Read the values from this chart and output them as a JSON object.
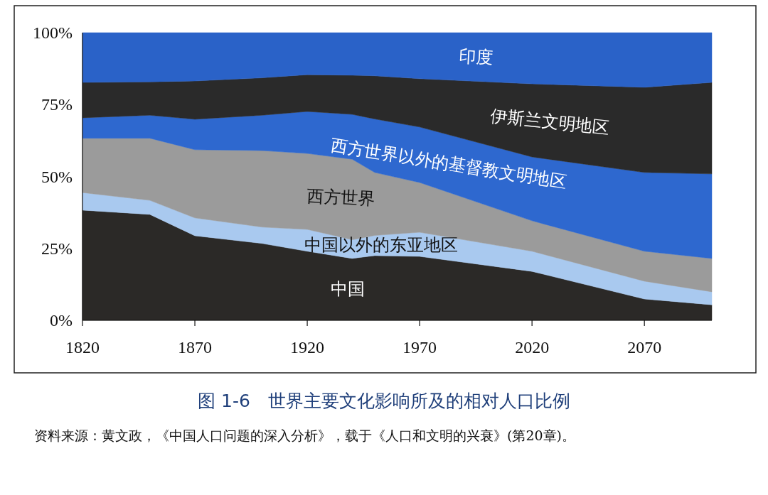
{
  "chart_data": {
    "type": "area",
    "stacked": true,
    "title": "图 1-6　世界主要文化影响所及的相对人口比例",
    "annotations": [
      "资料来源：黄文政，《中国人口问题的深入分析》，载于《人口和文明的兴衰》(第20章)。"
    ],
    "x": [
      1820,
      1850,
      1870,
      1900,
      1920,
      1940,
      1950,
      1970,
      2020,
      2070,
      2100
    ],
    "series": [
      {
        "name": "中国",
        "color": "#2b2927",
        "values": [
          38.3,
          36.8,
          29.4,
          26.7,
          24,
          21.5,
          22.5,
          22.2,
          17,
          7.4,
          5.4
        ]
      },
      {
        "name": "中国以外的东亚地区",
        "color": "#a9c9ef",
        "values": [
          6.1,
          4.9,
          6.2,
          5.7,
          7.6,
          6.5,
          7,
          8.4,
          7,
          6.2,
          4.5
        ]
      },
      {
        "name": "西方世界",
        "color": "#9b9b9b",
        "values": [
          18.9,
          21.6,
          23.7,
          26.6,
          26.4,
          28,
          21.9,
          17.3,
          10.6,
          10.4,
          11.6
        ]
      },
      {
        "name": "西方世界以外的基督教文明地区",
        "color": "#2e68cf",
        "values": [
          7.1,
          8,
          10.6,
          12.3,
          14.6,
          15.6,
          18.6,
          19.3,
          22.2,
          27.4,
          29.4
        ]
      },
      {
        "name": "伊斯兰文明地区",
        "color": "#2a2a2a",
        "values": [
          12.3,
          11.6,
          13.3,
          13,
          12.8,
          13.6,
          15,
          16.8,
          25.4,
          29.6,
          31.8
        ]
      },
      {
        "name": "印度",
        "color": "#2a62c8",
        "values": [
          17.3,
          17.1,
          16.8,
          15.7,
          14.6,
          14.8,
          15,
          16,
          17.8,
          19,
          17.3
        ]
      }
    ],
    "xlim": [
      1820,
      2100
    ],
    "xticks": [
      1820,
      1870,
      1920,
      1970,
      2020,
      2070
    ],
    "ylim": [
      0,
      100
    ],
    "yticks": [
      {
        "value": 0,
        "label": "0%"
      },
      {
        "value": 25,
        "label": "25%"
      },
      {
        "value": 50,
        "label": "50%"
      },
      {
        "value": 75,
        "label": "75%"
      },
      {
        "value": 100,
        "label": "100%"
      }
    ],
    "grid": false
  }
}
